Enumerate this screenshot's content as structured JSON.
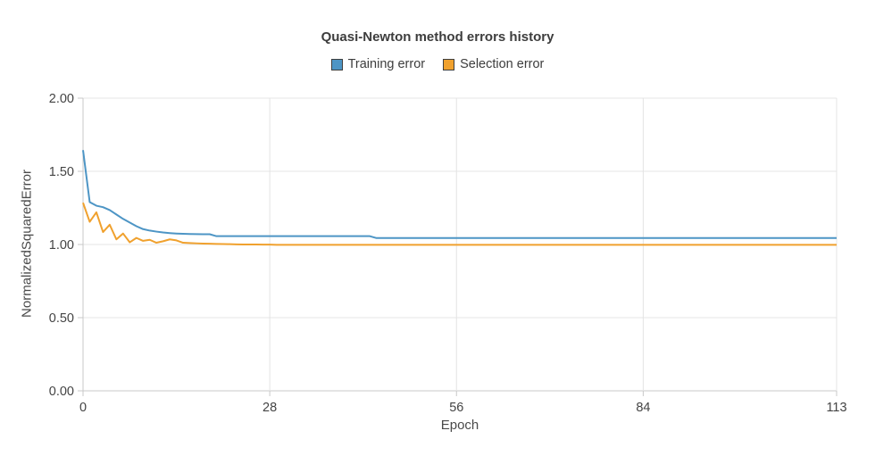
{
  "title": "Quasi-Newton method errors history",
  "palette": {
    "grid": "#e4e4e4",
    "axis": "#c9c9c9",
    "tick_text": "#444444",
    "title_text": "#3d3d3d"
  },
  "chart_data": {
    "type": "line",
    "title": "Quasi-Newton method errors history",
    "xlabel": "Epoch",
    "ylabel": "NormalizedSquaredError",
    "xlim": [
      0,
      113
    ],
    "ylim": [
      0.0,
      2.0
    ],
    "grid": true,
    "legend_position": "top",
    "x_ticks": [
      0,
      28,
      56,
      84,
      113
    ],
    "x_tick_labels": [
      "0",
      "28",
      "56",
      "84",
      "113"
    ],
    "y_ticks": [
      0.0,
      0.5,
      1.0,
      1.5,
      2.0
    ],
    "y_tick_labels": [
      "0.00",
      "0.50",
      "1.00",
      "1.50",
      "2.00"
    ],
    "series": [
      {
        "name": "Training error",
        "color": "#4d95c5",
        "values": [
          1.645,
          1.29,
          1.265,
          1.255,
          1.235,
          1.205,
          1.175,
          1.15,
          1.125,
          1.105,
          1.095,
          1.088,
          1.082,
          1.078,
          1.075,
          1.073,
          1.072,
          1.071,
          1.07,
          1.07,
          1.057,
          1.057,
          1.057,
          1.057,
          1.057,
          1.057,
          1.057,
          1.057,
          1.057,
          1.057,
          1.057,
          1.057,
          1.057,
          1.057,
          1.057,
          1.057,
          1.057,
          1.057,
          1.057,
          1.057,
          1.057,
          1.057,
          1.057,
          1.057,
          1.044,
          1.044,
          1.044,
          1.044,
          1.044,
          1.044,
          1.044,
          1.044,
          1.044,
          1.044,
          1.044,
          1.044,
          1.044,
          1.044,
          1.044,
          1.044,
          1.044,
          1.044,
          1.044,
          1.044,
          1.044,
          1.044,
          1.044,
          1.044,
          1.044,
          1.044,
          1.044,
          1.044,
          1.044,
          1.044,
          1.044,
          1.044,
          1.044,
          1.044,
          1.044,
          1.044,
          1.044,
          1.044,
          1.044,
          1.044,
          1.044,
          1.044,
          1.044,
          1.044,
          1.044,
          1.044,
          1.044,
          1.044,
          1.044,
          1.044,
          1.044,
          1.044,
          1.044,
          1.044,
          1.044,
          1.044,
          1.044,
          1.044,
          1.044,
          1.044,
          1.044,
          1.044,
          1.044,
          1.044,
          1.044,
          1.044,
          1.044,
          1.044,
          1.044,
          1.044
        ]
      },
      {
        "name": "Selection error",
        "color": "#f0a12e",
        "values": [
          1.285,
          1.155,
          1.22,
          1.085,
          1.135,
          1.035,
          1.075,
          1.015,
          1.045,
          1.025,
          1.032,
          1.012,
          1.022,
          1.035,
          1.028,
          1.012,
          1.01,
          1.008,
          1.006,
          1.005,
          1.004,
          1.003,
          1.002,
          1.001,
          1.0,
          1.0,
          1.0,
          0.999,
          0.999,
          0.998,
          0.998,
          0.998,
          0.998,
          0.998,
          0.998,
          0.998,
          0.998,
          0.998,
          0.998,
          0.998,
          0.998,
          0.998,
          0.998,
          0.998,
          0.998,
          0.998,
          0.998,
          0.998,
          0.998,
          0.998,
          0.998,
          0.998,
          0.998,
          0.998,
          0.998,
          0.998,
          0.998,
          0.998,
          0.998,
          0.998,
          0.998,
          0.998,
          0.998,
          0.998,
          0.998,
          0.998,
          0.998,
          0.998,
          0.998,
          0.998,
          0.998,
          0.998,
          0.998,
          0.998,
          0.998,
          0.998,
          0.998,
          0.998,
          0.998,
          0.998,
          0.998,
          0.998,
          0.998,
          0.998,
          0.998,
          0.998,
          0.998,
          0.998,
          0.998,
          0.998,
          0.998,
          0.998,
          0.998,
          0.998,
          0.998,
          0.998,
          0.998,
          0.998,
          0.998,
          0.998,
          0.998,
          0.998,
          0.998,
          0.998,
          0.998,
          0.998,
          0.998,
          0.998,
          0.998,
          0.998,
          0.998,
          0.998,
          0.998,
          0.998
        ]
      }
    ]
  }
}
